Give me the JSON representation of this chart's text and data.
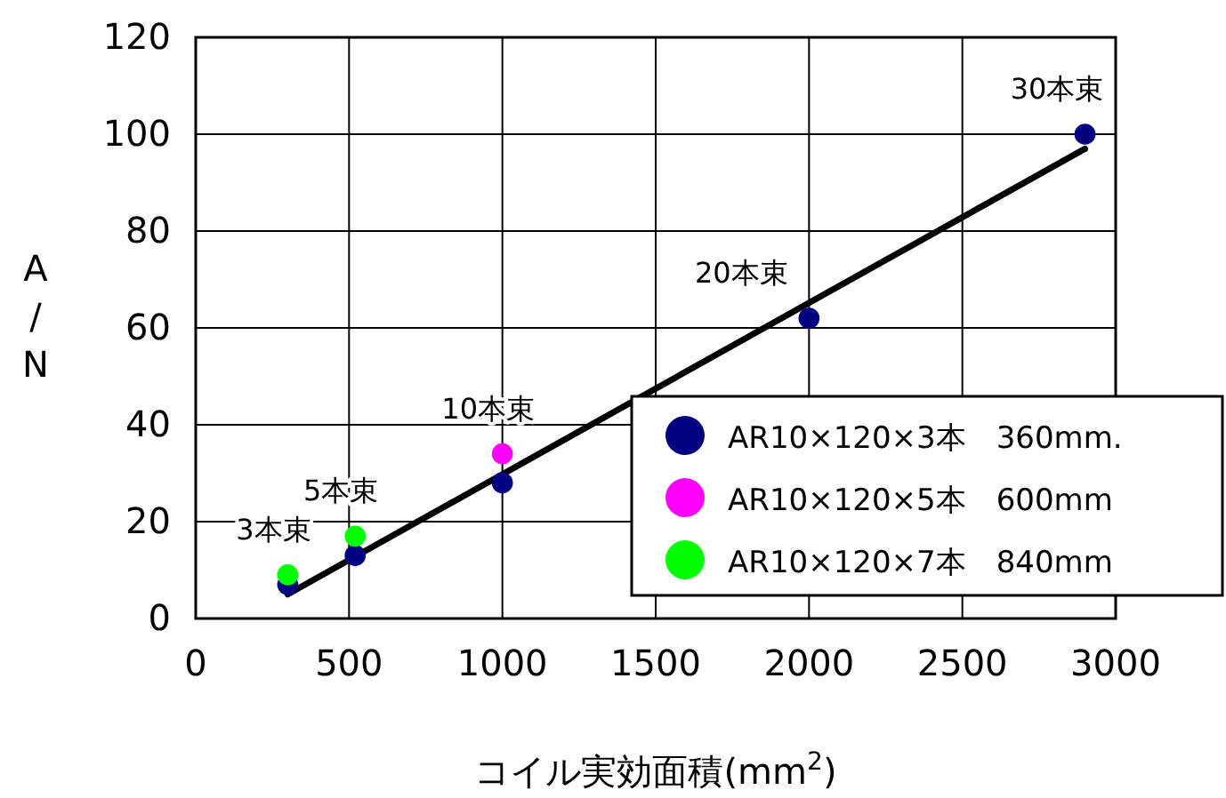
{
  "chart_data": {
    "type": "scatter",
    "xlabel": "コイル実効面積(mm$^{2}$)",
    "ylabel": "A/N",
    "xlim": [
      0,
      3000
    ],
    "xticks": [
      0,
      500,
      1000,
      1500,
      2000,
      2500,
      3000
    ],
    "ylim": [
      0,
      120
    ],
    "yticks": [
      0,
      20,
      40,
      60,
      80,
      100,
      120
    ],
    "grid": true,
    "legend": "bottom right",
    "marker": "circle",
    "series": [
      {
        "name": "AR10×120×3本　360mm.",
        "color": "#000080",
        "x": [
          300,
          520,
          1000,
          2000,
          2900
        ],
        "values": [
          7,
          13,
          28,
          62,
          100
        ]
      },
      {
        "name": "AR10×120×5本　600mm",
        "color": "#ff00ff",
        "x": [
          1000
        ],
        "values": [
          34
        ]
      },
      {
        "name": "AR10×120×7本　840mm",
        "color": "#00ff00",
        "x": [
          300,
          520
        ],
        "values": [
          9,
          17
        ]
      },
      {
        "type": "line",
        "color": "#000000",
        "marker": "none",
        "x": [
          300,
          2900
        ],
        "values": [
          5,
          97
        ]
      }
    ],
    "annotations": [
      {
        "text": "3本束",
        "x": 300,
        "y": 9
      },
      {
        "text": "5本束",
        "x": 520,
        "y": 17
      },
      {
        "text": "10本束",
        "x": 1000,
        "y": 34
      },
      {
        "text": "20本束",
        "x": 2000,
        "y": 62
      },
      {
        "text": "30本束",
        "x": 2900,
        "y": 100
      }
    ]
  }
}
